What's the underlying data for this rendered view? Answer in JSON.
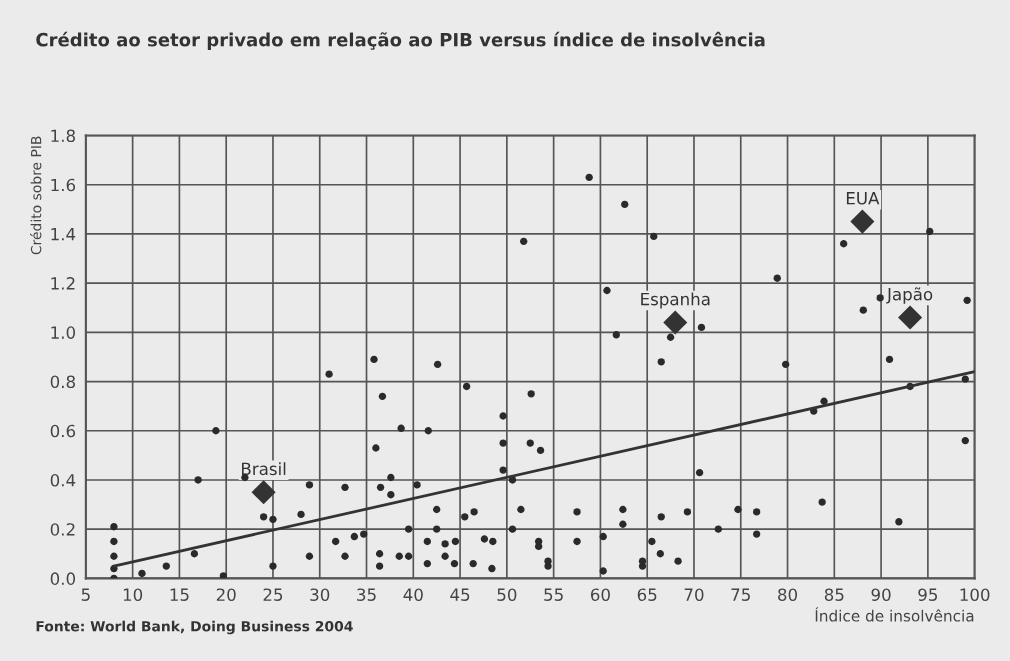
{
  "chart_data": {
    "type": "scatter",
    "title": "Crédito ao setor privado em relação ao PIB versus índice de insolvência",
    "xlabel": "Índice de insolvência",
    "ylabel": "Crédito sobre PIB",
    "xlim": [
      5,
      100
    ],
    "ylim": [
      0,
      1.8
    ],
    "xticks": [
      5,
      10,
      15,
      20,
      25,
      30,
      35,
      40,
      45,
      50,
      55,
      60,
      65,
      70,
      75,
      80,
      85,
      90,
      95,
      100
    ],
    "yticks": [
      {
        "value": 0,
        "label": "0.0"
      },
      {
        "value": 0.2,
        "label": "0.2"
      },
      {
        "value": 0.4,
        "label": "0.4"
      },
      {
        "value": 0.6,
        "label": "0.6"
      },
      {
        "value": 0.8,
        "label": "0.8"
      },
      {
        "value": 1.0,
        "label": "1.0"
      },
      {
        "value": 1.2,
        "label": "1.2"
      },
      {
        "value": 1.4,
        "label": "1.4"
      },
      {
        "value": 1.6,
        "label": "1.6"
      },
      {
        "value": 1.8,
        "label": "1.8"
      }
    ],
    "grid": true,
    "series": [
      {
        "marker": "circle",
        "color": "#2a2a2a",
        "x": [
          8,
          8,
          8,
          8,
          8,
          11,
          13.6,
          16.6,
          17,
          18.9,
          19.7,
          22,
          24,
          25,
          25,
          28,
          28.9,
          28.9,
          31,
          31.7,
          32.7,
          32.7,
          33.7,
          34.7,
          35.8,
          36,
          36.5,
          36.4,
          36.4,
          36.7,
          37.6,
          37.6,
          38.5,
          38.7,
          39.5,
          39.5,
          40.4,
          41.5,
          41.5,
          41.6,
          42.5,
          42.5,
          42.6,
          43.4,
          43.4,
          44.4,
          44.5,
          45.5,
          45.7,
          46.4,
          46.5,
          47.6,
          48.4,
          48.5,
          49.6,
          49.6,
          49.6,
          50.6,
          50.6,
          51.5,
          51.8,
          52.5,
          52.6,
          53.4,
          53.4,
          53.6,
          54.4,
          54.4,
          57.5,
          57.5,
          58.8,
          60.3,
          60.3,
          60.7,
          61.7,
          62.4,
          62.4,
          62.6,
          64.5,
          64.5,
          65.5,
          65.7,
          66.4,
          66.5,
          66.5,
          67.5,
          68.3,
          69.3,
          70.6,
          70.8,
          72.6,
          74.7,
          76.7,
          76.7,
          78.9,
          79.8,
          82.8,
          83.7,
          83.9,
          86,
          88.1,
          89.9,
          90.9,
          91.9,
          93.1,
          95.2,
          99,
          99,
          99.2
        ],
        "values": [
          0.21,
          0.15,
          0.09,
          0.04,
          0.0,
          0.02,
          0.05,
          0.1,
          0.4,
          0.6,
          0.01,
          0.41,
          0.25,
          0.24,
          0.05,
          0.26,
          0.38,
          0.09,
          0.83,
          0.15,
          0.37,
          0.09,
          0.17,
          0.18,
          0.89,
          0.53,
          0.37,
          0.1,
          0.05,
          0.74,
          0.41,
          0.34,
          0.09,
          0.61,
          0.09,
          0.2,
          0.38,
          0.15,
          0.06,
          0.6,
          0.28,
          0.2,
          0.87,
          0.14,
          0.09,
          0.06,
          0.15,
          0.25,
          0.78,
          0.06,
          0.27,
          0.16,
          0.04,
          0.15,
          0.66,
          0.55,
          0.44,
          0.4,
          0.2,
          0.28,
          1.37,
          0.55,
          0.75,
          0.15,
          0.13,
          0.52,
          0.07,
          0.05,
          0.27,
          0.15,
          1.63,
          0.17,
          0.03,
          1.17,
          0.99,
          0.28,
          0.22,
          1.52,
          0.07,
          0.05,
          0.15,
          1.39,
          0.1,
          0.88,
          0.25,
          0.98,
          0.07,
          0.27,
          0.43,
          1.02,
          0.2,
          0.28,
          0.27,
          0.18,
          1.22,
          0.87,
          0.68,
          0.31,
          0.72,
          1.36,
          1.09,
          1.14,
          0.89,
          0.23,
          0.78,
          1.41,
          0.81,
          0.56,
          1.13
        ]
      },
      {
        "marker": "diamond",
        "color": "#333333",
        "x": [
          24,
          68,
          88,
          93.1
        ],
        "values": [
          0.35,
          1.04,
          1.45,
          1.06
        ]
      },
      {
        "type": "line",
        "marker": "none",
        "color": "#333333",
        "x": [
          8,
          100
        ],
        "values": [
          0.05,
          0.84
        ]
      }
    ],
    "annotations": [
      {
        "text": "Brasil",
        "x": 24,
        "y": 0.35
      },
      {
        "text": "Espanha",
        "x": 68,
        "y": 1.04
      },
      {
        "text": "EUA",
        "x": 88,
        "y": 1.45
      },
      {
        "text": "Japão",
        "x": 93.1,
        "y": 1.06
      },
      "Fonte: World Bank, Doing Business 2004"
    ]
  }
}
